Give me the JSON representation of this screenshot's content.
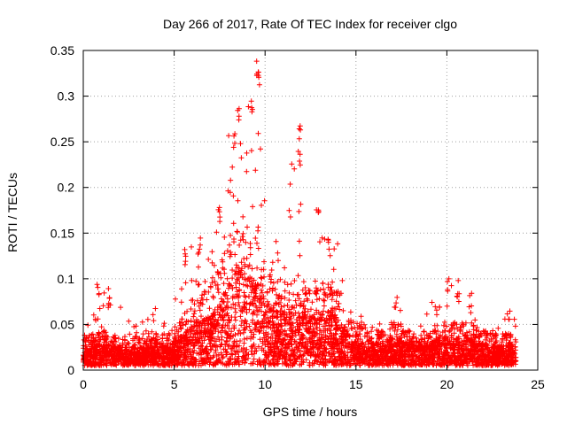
{
  "chart_data": {
    "type": "scatter",
    "title": "Day 266 of 2017, Rate Of TEC Index for receiver clgo",
    "xlabel": "GPS time / hours",
    "ylabel": "ROTI / TECUs",
    "xlim": [
      0,
      25
    ],
    "ylim": [
      0,
      0.35
    ],
    "x_ticks": [
      0,
      5,
      10,
      15,
      20,
      25
    ],
    "x_tick_labels": [
      "0",
      "5",
      "10",
      "15",
      "20",
      "25"
    ],
    "y_ticks": [
      0,
      0.05,
      0.1,
      0.15,
      0.2,
      0.25,
      0.3,
      0.35
    ],
    "y_tick_labels": [
      "0",
      "0.05",
      "0.1",
      "0.15",
      "0.2",
      "0.25",
      "0.3",
      "0.35"
    ],
    "grid": true,
    "marker": "+",
    "color": "#ff0000",
    "envelope": {
      "hours": [
        0,
        0.5,
        1,
        1.5,
        2,
        2.5,
        3,
        3.5,
        4,
        4.5,
        5,
        5.5,
        6,
        6.5,
        7,
        7.5,
        8,
        8.5,
        9,
        9.5,
        10,
        10.5,
        11,
        11.5,
        12,
        12.5,
        13,
        13.5,
        14,
        14.5,
        15,
        15.5,
        16,
        16.5,
        17,
        17.5,
        18,
        18.5,
        19,
        19.5,
        20,
        20.5,
        21,
        21.5,
        22,
        22.5,
        23,
        23.5,
        23.8
      ],
      "max_roti": [
        0.045,
        0.055,
        0.095,
        0.09,
        0.07,
        0.06,
        0.055,
        0.055,
        0.07,
        0.065,
        0.07,
        0.135,
        0.145,
        0.12,
        0.13,
        0.18,
        0.26,
        0.29,
        0.3,
        0.34,
        0.2,
        0.17,
        0.15,
        0.27,
        0.2,
        0.19,
        0.17,
        0.15,
        0.14,
        0.11,
        0.07,
        0.065,
        0.06,
        0.05,
        0.09,
        0.085,
        0.065,
        0.07,
        0.065,
        0.1,
        0.1,
        0.09,
        0.085,
        0.075,
        0.065,
        0.06,
        0.055,
        0.065,
        0.06
      ],
      "typical_roti": [
        0.02,
        0.022,
        0.025,
        0.022,
        0.02,
        0.02,
        0.02,
        0.02,
        0.022,
        0.022,
        0.025,
        0.035,
        0.045,
        0.05,
        0.055,
        0.07,
        0.09,
        0.11,
        0.1,
        0.1,
        0.07,
        0.06,
        0.06,
        0.065,
        0.06,
        0.055,
        0.055,
        0.06,
        0.055,
        0.04,
        0.03,
        0.028,
        0.025,
        0.025,
        0.03,
        0.028,
        0.025,
        0.025,
        0.022,
        0.03,
        0.03,
        0.03,
        0.03,
        0.028,
        0.025,
        0.022,
        0.022,
        0.022,
        0.02
      ]
    },
    "labeled_peaks": [
      {
        "x": 0.8,
        "y": 0.097
      },
      {
        "x": 1.4,
        "y": 0.09
      },
      {
        "x": 5.6,
        "y": 0.135
      },
      {
        "x": 6.4,
        "y": 0.145
      },
      {
        "x": 7.5,
        "y": 0.18
      },
      {
        "x": 8.3,
        "y": 0.26
      },
      {
        "x": 8.5,
        "y": 0.29
      },
      {
        "x": 9.3,
        "y": 0.3
      },
      {
        "x": 9.6,
        "y": 0.34
      },
      {
        "x": 9.7,
        "y": 0.33
      },
      {
        "x": 11.9,
        "y": 0.27
      },
      {
        "x": 11.9,
        "y": 0.24
      },
      {
        "x": 12.9,
        "y": 0.19
      },
      {
        "x": 13.5,
        "y": 0.15
      },
      {
        "x": 20.1,
        "y": 0.1
      },
      {
        "x": 20.6,
        "y": 0.1
      },
      {
        "x": 21.3,
        "y": 0.085
      },
      {
        "x": 23.4,
        "y": 0.065
      }
    ]
  }
}
